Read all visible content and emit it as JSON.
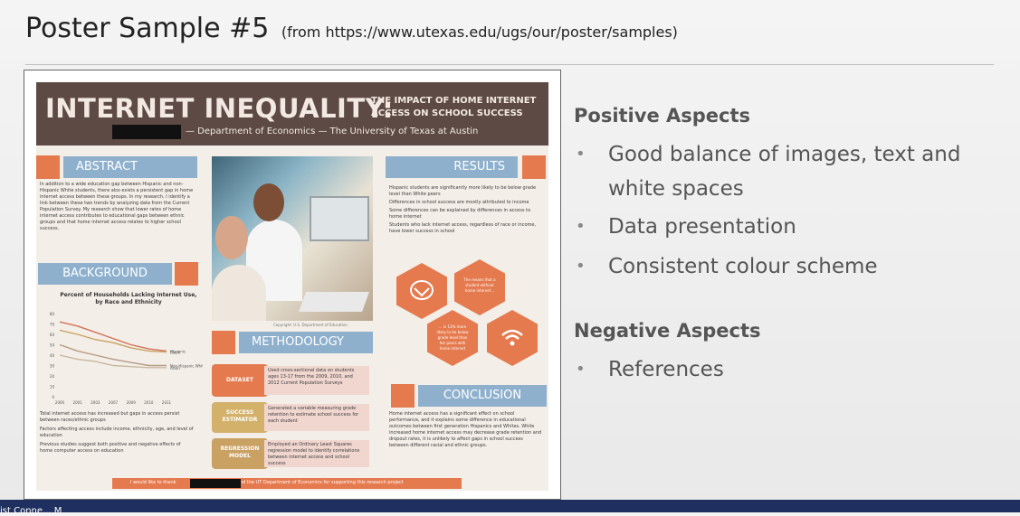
{
  "slide": {
    "title": "Poster Sample #5",
    "source": "(from https://www.utexas.edu/ugs/our/poster/samples)"
  },
  "poster": {
    "title": "INTERNET INEQUALITY:",
    "subtitle": "THE IMPACT OF HOME INTERNET ACCESS ON SCHOOL SUCCESS",
    "department": "— Department of Economics — The University of Texas at Austin",
    "sections": {
      "abstract": "ABSTRACT",
      "background": "BACKGROUND",
      "methodology": "METHODOLOGY",
      "results": "RESULTS",
      "conclusion": "CONCLUSION"
    },
    "abstract_text": "In addition to a wide education gap between Hispanic and non-Hispanic White students, there also exists a persistent gap in home internet access between these groups. In my research, I identify a link between these two trends by analyzing data from the Current Population Survey. My research show that lower rates of home internet access contributes to educational gaps between ethnic groups and that home internet access relates to higher school success.",
    "chart": {
      "title": "Percent of Households Lacking Internet Use, by Race and Ethnicity",
      "years": [
        "2000",
        "2001",
        "2003",
        "2007",
        "2009",
        "2010",
        "2011"
      ],
      "y_ticks": [
        "80",
        "70",
        "60",
        "50",
        "40",
        "30",
        "20",
        "10",
        "0"
      ],
      "series": [
        {
          "name": "Hispanic",
          "values": [
            72,
            68,
            62,
            56,
            50,
            46,
            44
          ]
        },
        {
          "name": "Black",
          "values": [
            64,
            60,
            55,
            52,
            47,
            44,
            43
          ]
        },
        {
          "name": "Non-Hispanic White",
          "values": [
            50,
            44,
            40,
            36,
            33,
            30,
            30
          ]
        },
        {
          "name": "Asian",
          "values": [
            40,
            36,
            34,
            30,
            29,
            28,
            28
          ]
        }
      ]
    },
    "background_bullets": [
      "Total internet access has increased but gaps in access persist between races/ethnic groups",
      "Factors affecting access include income, ethnicity, age, and level of education",
      "Previous studies suggest both positive and negative effects of home computer access on education"
    ],
    "photo_caption": "Copyright: U.S. Department of Education",
    "methodology": [
      {
        "label": "DATASET",
        "text": "Used cross-sectional data on students ages 13-17 from the 2009, 2010, and 2012 Current Population Surveys",
        "color": "#e57a4e"
      },
      {
        "label": "SUCCESS ESTIMATOR",
        "text": "Generated a variable measuring grade retention to estimate school success for each student",
        "color": "#d3b16b"
      },
      {
        "label": "REGRESSION MODEL",
        "text": "Employed an Ordinary Least Squares regression model to identify correlations between internet access and school success",
        "color": "#c9a163"
      }
    ],
    "results_bullets": [
      "Hispanic students are significantly more likely to be below grade level than White peers",
      "Differences in school success are mostly attributed to income",
      "Some differences can be explained by differences in access to home internet",
      "Students who lack internet access, regardless of race or income, have lower success in school"
    ],
    "hex_texts": [
      "The means that a student without home internet...",
      "... is 13% more likely to be below grade level than her peers with home internet"
    ],
    "conclusion_text": "Home internet access has a significant effect on school performance, and it explains some difference in educational outcomes between first generation Hispanics and Whites. While increased home internet access may decrease grade retention and dropout rates, it is unlikely to affect gaps in school success between different racial and ethnic groups.",
    "footer": {
      "before": "I would like to thank",
      "after": "and the UT Department of Economics for supporting this research project"
    }
  },
  "positive": {
    "heading": "Positive Aspects",
    "items": [
      "Good balance of images, text and white spaces",
      "Data presentation",
      "Consistent colour scheme"
    ]
  },
  "negative": {
    "heading": "Negative Aspects",
    "items": [
      "References"
    ]
  },
  "taskbar": {
    "text": "ist Conne... M"
  },
  "colors": {
    "header": "#5e4a45",
    "accent": "#e57a4e",
    "section_blue": "#8eb0cd",
    "taskbar": "#1f3060"
  }
}
